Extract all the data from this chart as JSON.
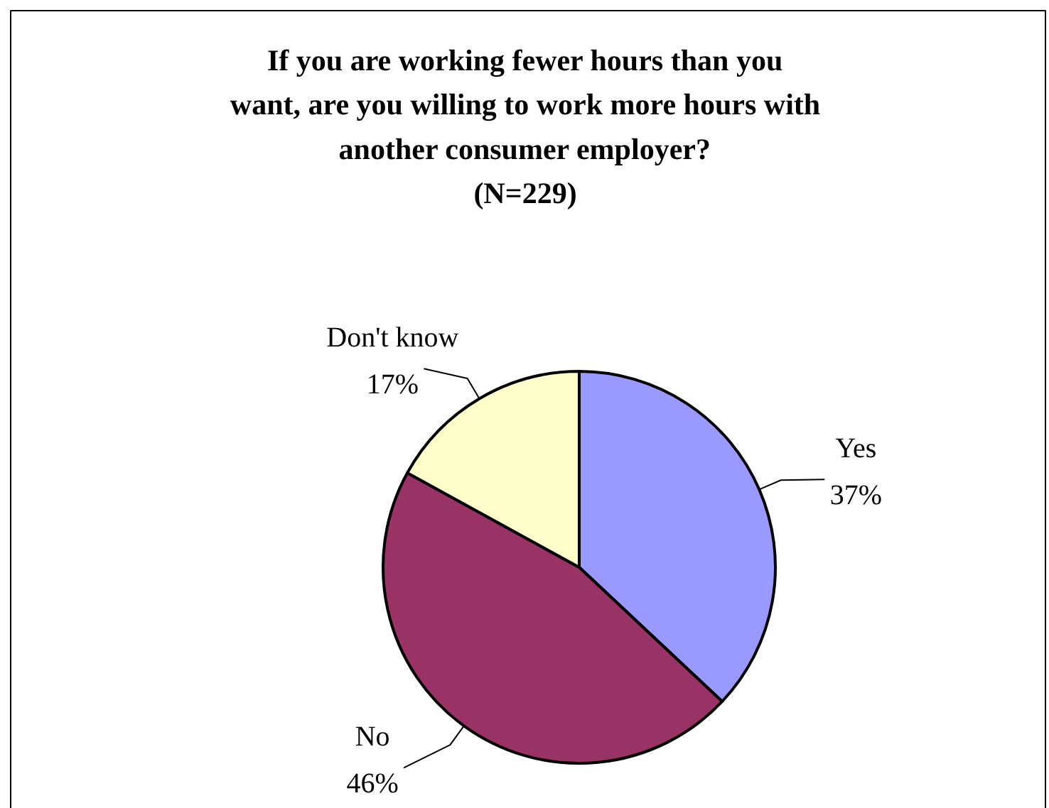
{
  "chart_data": {
    "type": "pie",
    "title": "If you are working fewer hours than you\nwant, are you willing to work more hours with\nanother consumer employer?\n(N=229)",
    "categories": [
      "Yes",
      "No",
      "Don't know"
    ],
    "values": [
      37,
      46,
      17
    ],
    "colors": [
      "#9999ff",
      "#993366",
      "#ffffcc"
    ],
    "value_labels": [
      "37%",
      "46%",
      "17%"
    ]
  }
}
